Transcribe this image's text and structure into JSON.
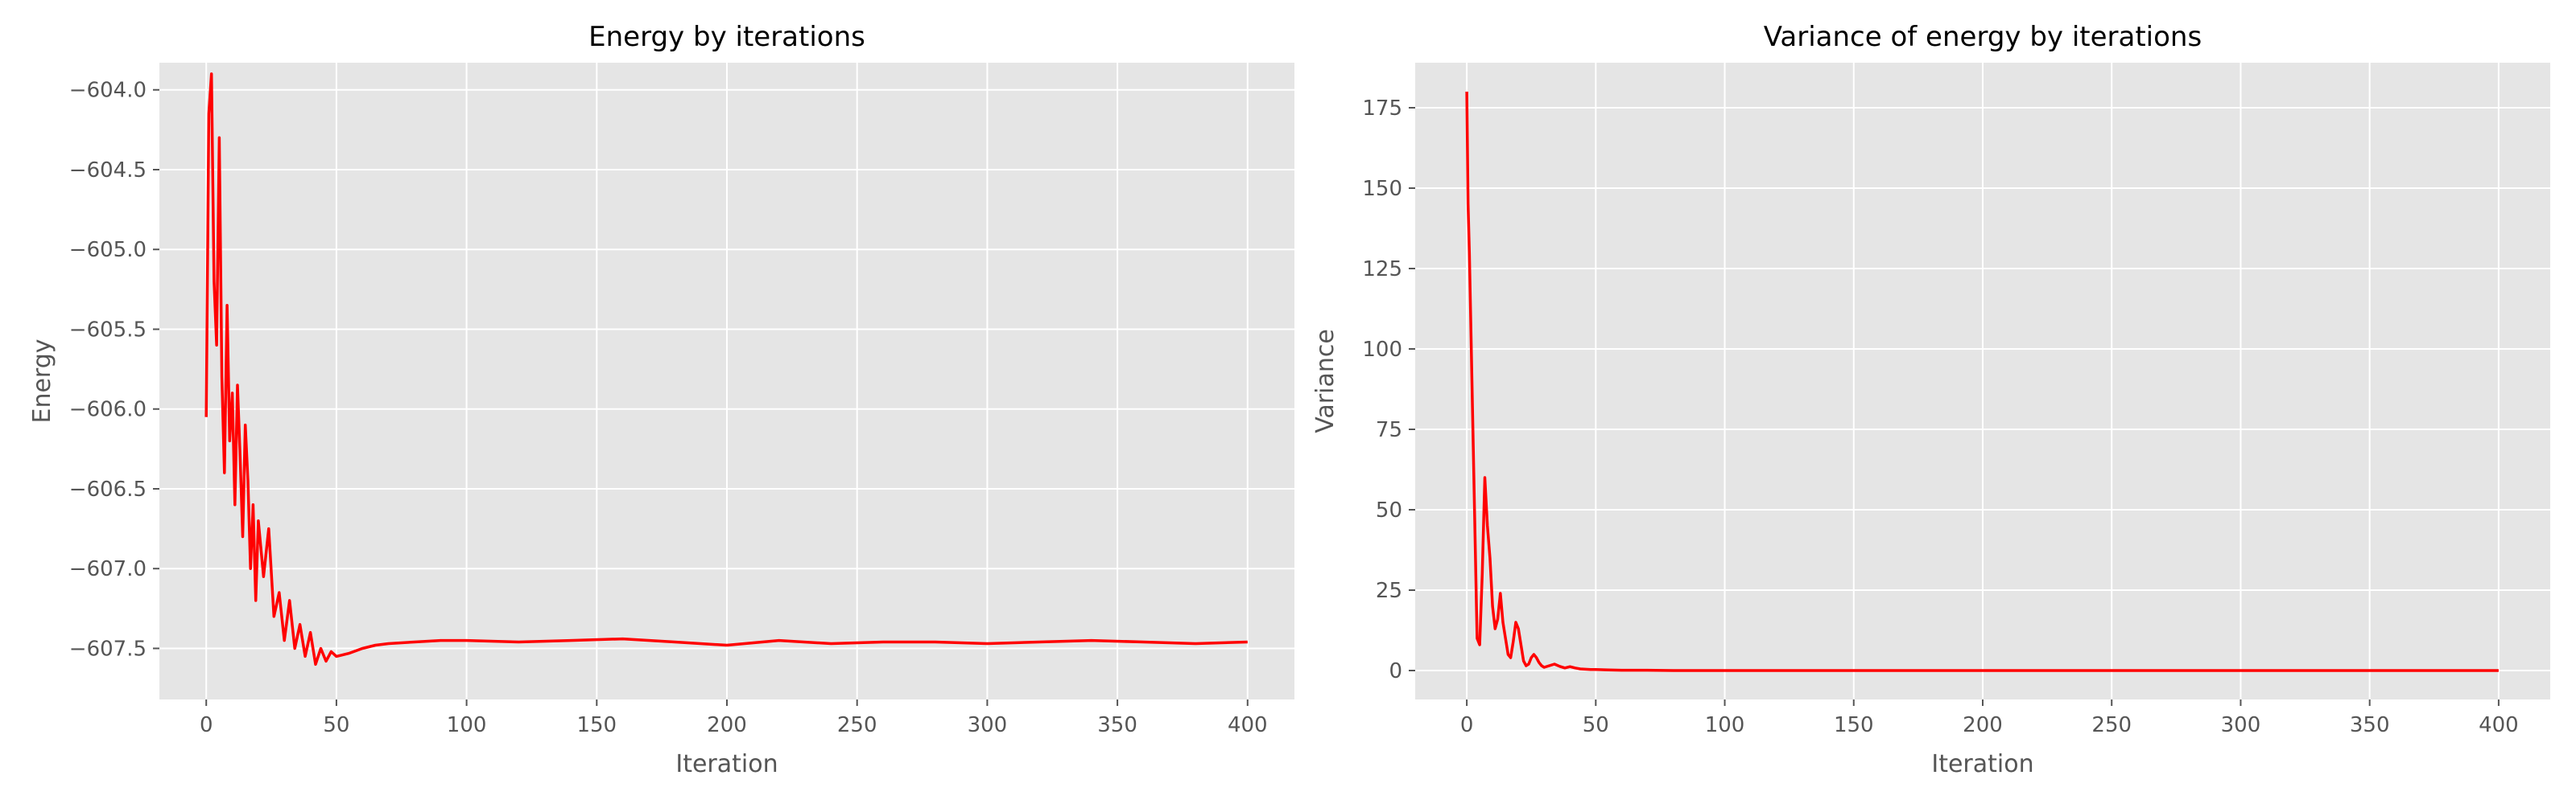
{
  "chart_data": [
    {
      "type": "line",
      "title": "Energy by iterations",
      "xlabel": "Iteration",
      "ylabel": "Energy",
      "xlim": [
        -18,
        418
      ],
      "ylim": [
        -607.82,
        -603.83
      ],
      "xticks": [
        0,
        50,
        100,
        150,
        200,
        250,
        300,
        350,
        400
      ],
      "xtick_labels": [
        "0",
        "50",
        "100",
        "150",
        "200",
        "250",
        "300",
        "350",
        "400"
      ],
      "yticks": [
        -604.0,
        -604.5,
        -605.0,
        -605.5,
        -606.0,
        -606.5,
        -607.0,
        -607.5
      ],
      "ytick_labels": [
        "−604.0",
        "−604.5",
        "−605.0",
        "−605.5",
        "−606.0",
        "−606.5",
        "−607.0",
        "−607.5"
      ],
      "grid": true,
      "series": [
        {
          "color": "#ff0000",
          "x": [
            0,
            1,
            2,
            3,
            4,
            5,
            6,
            7,
            8,
            9,
            10,
            11,
            12,
            13,
            14,
            15,
            16,
            17,
            18,
            19,
            20,
            22,
            24,
            26,
            28,
            30,
            32,
            34,
            36,
            38,
            40,
            42,
            44,
            46,
            48,
            50,
            55,
            60,
            65,
            70,
            80,
            90,
            100,
            120,
            140,
            160,
            180,
            200,
            220,
            240,
            260,
            280,
            300,
            320,
            340,
            360,
            380,
            400
          ],
          "y": [
            -606.05,
            -604.15,
            -603.9,
            -605.2,
            -605.6,
            -604.3,
            -605.8,
            -606.4,
            -605.35,
            -606.2,
            -605.9,
            -606.6,
            -605.85,
            -606.3,
            -606.8,
            -606.1,
            -606.45,
            -607.0,
            -606.6,
            -607.2,
            -606.7,
            -607.05,
            -606.75,
            -607.3,
            -607.15,
            -607.45,
            -607.2,
            -607.5,
            -607.35,
            -607.55,
            -607.4,
            -607.6,
            -607.5,
            -607.58,
            -607.52,
            -607.55,
            -607.53,
            -607.5,
            -607.48,
            -607.47,
            -607.46,
            -607.45,
            -607.45,
            -607.46,
            -607.45,
            -607.44,
            -607.46,
            -607.48,
            -607.45,
            -607.47,
            -607.46,
            -607.46,
            -607.47,
            -607.46,
            -607.45,
            -607.46,
            -607.47,
            -607.46
          ]
        }
      ]
    },
    {
      "type": "line",
      "title": "Variance of energy by iterations",
      "xlabel": "Iteration",
      "ylabel": "Variance",
      "xlim": [
        -20,
        420
      ],
      "ylim": [
        -9,
        189
      ],
      "xticks": [
        0,
        50,
        100,
        150,
        200,
        250,
        300,
        350,
        400
      ],
      "xtick_labels": [
        "0",
        "50",
        "100",
        "150",
        "200",
        "250",
        "300",
        "350",
        "400"
      ],
      "yticks": [
        0,
        25,
        50,
        75,
        100,
        125,
        150,
        175
      ],
      "ytick_labels": [
        "0",
        "25",
        "50",
        "75",
        "100",
        "125",
        "150",
        "175"
      ],
      "grid": true,
      "series": [
        {
          "color": "#ff0000",
          "x": [
            0,
            0.5,
            1,
            1.5,
            2,
            2.5,
            3,
            3.5,
            4,
            5,
            6,
            7,
            8,
            9,
            10,
            11,
            12,
            13,
            14,
            15,
            16,
            17,
            18,
            19,
            20,
            21,
            22,
            23,
            24,
            25,
            26,
            27,
            28,
            29,
            30,
            32,
            34,
            36,
            38,
            40,
            42,
            44,
            46,
            48,
            50,
            55,
            60,
            70,
            80,
            100,
            150,
            200,
            300,
            400
          ],
          "y": [
            180,
            145,
            130,
            110,
            90,
            70,
            50,
            30,
            10,
            8,
            30,
            60,
            45,
            35,
            20,
            13,
            16,
            24,
            15,
            10,
            5,
            4,
            9,
            15,
            13,
            8,
            3,
            1.5,
            2,
            4,
            5,
            4,
            2.5,
            1.5,
            1,
            1.5,
            2,
            1.3,
            0.8,
            1.2,
            0.8,
            0.5,
            0.4,
            0.3,
            0.3,
            0.2,
            0.1,
            0.1,
            0,
            0,
            0,
            0,
            0,
            0
          ]
        }
      ]
    }
  ]
}
